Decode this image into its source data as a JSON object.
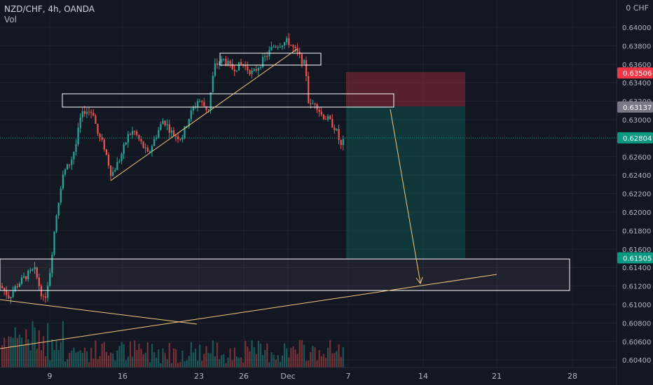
{
  "header": {
    "symbol_line": "NZD/CHF, 4h, OANDA",
    "volume_label": "Vol"
  },
  "price_axis": {
    "currency_label": "0 CHF",
    "ticks": [
      "0.64000",
      "0.63800",
      "0.63600",
      "0.63400",
      "0.63200",
      "0.63000",
      "0.62800",
      "0.62600",
      "0.62400",
      "0.62200",
      "0.62000",
      "0.61800",
      "0.61600",
      "0.61400",
      "0.61200",
      "0.61000",
      "0.60800",
      "0.60600",
      "0.60400"
    ],
    "badges": {
      "stop": {
        "value": "0.63506",
        "color": "#f23645"
      },
      "entry": {
        "value": "0.63137",
        "color": "#787b86"
      },
      "current": {
        "value": "0.62804",
        "color": "#089981"
      },
      "target": {
        "value": "0.61505",
        "color": "#089981"
      }
    }
  },
  "time_axis": {
    "labels": [
      "9",
      "16",
      "23",
      "26",
      "Dec",
      "7",
      "14",
      "21",
      "28"
    ]
  },
  "colors": {
    "background": "#131722",
    "up": "#26a69a",
    "down": "#ef5350",
    "trendline": "#f5c77e",
    "box": "#ffffff",
    "grid": "#1e222d"
  },
  "chart_data": {
    "type": "candlestick",
    "ylim": [
      0.603,
      0.6412
    ],
    "position_tool": {
      "entry": 0.63137,
      "stop": 0.63506,
      "target": 0.61505
    },
    "zones": [
      {
        "name": "top-range",
        "from": 0.6361,
        "to": 0.6374
      },
      {
        "name": "resistance",
        "from": 0.63137,
        "to": 0.6328
      },
      {
        "name": "demand",
        "from": 0.6115,
        "to": 0.6149
      }
    ]
  }
}
